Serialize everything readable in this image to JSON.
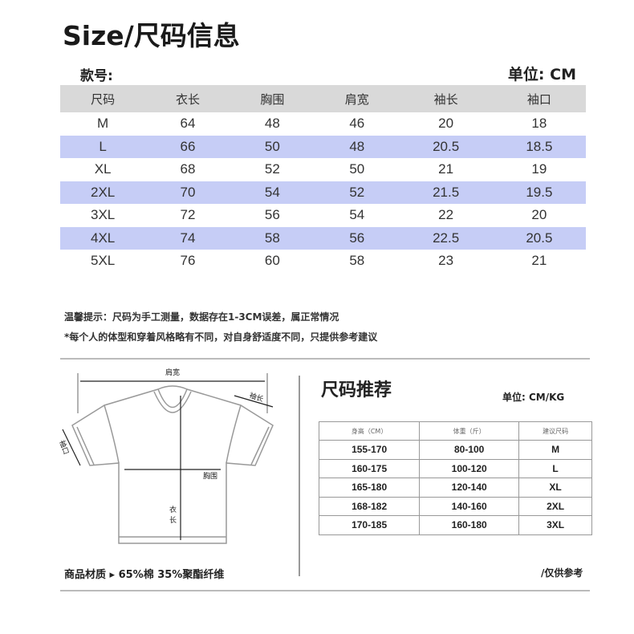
{
  "title": "Size/尺码信息",
  "style_no_label": "款号:",
  "unit": "单位: CM",
  "size_table": {
    "headers": [
      "尺码",
      "衣长",
      "胸围",
      "肩宽",
      "袖长",
      "袖口"
    ],
    "rows": [
      [
        "M",
        "64",
        "48",
        "46",
        "20",
        "18"
      ],
      [
        "L",
        "66",
        "50",
        "48",
        "20.5",
        "18.5"
      ],
      [
        "XL",
        "68",
        "52",
        "50",
        "21",
        "19"
      ],
      [
        "2XL",
        "70",
        "54",
        "52",
        "21.5",
        "19.5"
      ],
      [
        "3XL",
        "72",
        "56",
        "54",
        "22",
        "20"
      ],
      [
        "4XL",
        "74",
        "58",
        "56",
        "22.5",
        "20.5"
      ],
      [
        "5XL",
        "76",
        "60",
        "58",
        "23",
        "21"
      ]
    ],
    "row_highlight_color": "#c6cdf6",
    "header_color": "#d9d9d9"
  },
  "notes": [
    "温馨提示：尺码为手工测量，数据存在1-3CM误差，属正常情况",
    "*每个人的体型和穿着风格略有不同，对自身舒适度不同，只提供参考建议"
  ],
  "diagram": {
    "shoulder": "肩宽",
    "sleeve_length": "袖长",
    "cuff": "袖口",
    "chest": "胸围",
    "length_1": "衣",
    "length_2": "长"
  },
  "material": "商品材质 ▸  65%棉 35%聚酯纤维",
  "recommendation": {
    "title": "尺码推荐",
    "unit": "单位: CM/KG",
    "headers": [
      "身高（CM）",
      "体重（斤）",
      "建议尺码"
    ],
    "rows": [
      [
        "155-170",
        "80-100",
        "M"
      ],
      [
        "160-175",
        "100-120",
        "L"
      ],
      [
        "165-180",
        "120-140",
        "XL"
      ],
      [
        "168-182",
        "140-160",
        "2XL"
      ],
      [
        "170-185",
        "160-180",
        "3XL"
      ]
    ],
    "footnote": "/仅供参考"
  }
}
